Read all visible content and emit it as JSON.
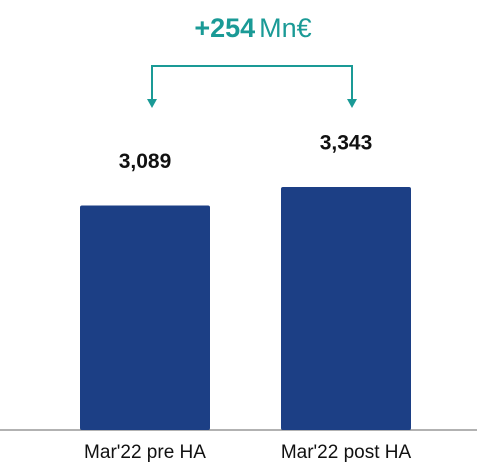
{
  "chart_data": {
    "type": "bar",
    "annotation": {
      "change": "+254",
      "unit": "Mn€"
    },
    "categories": [
      "Mar'22 pre HA",
      "Mar'22 post HA"
    ],
    "values": [
      3089,
      3343
    ],
    "value_labels": [
      "3,089",
      "3,343"
    ],
    "color": "#1c3f85"
  }
}
